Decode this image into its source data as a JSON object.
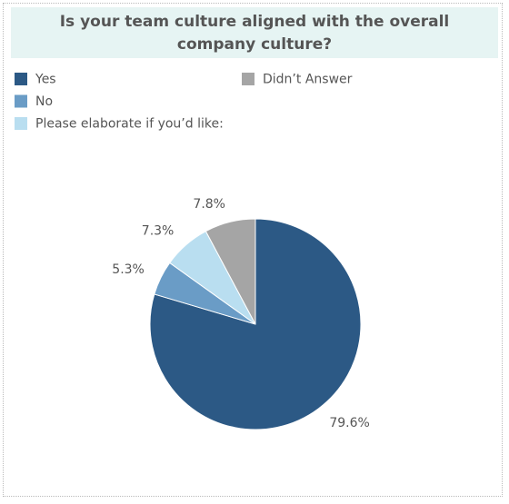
{
  "chart_data": {
    "type": "pie",
    "title": "Is your team culture aligned with the overall company culture?",
    "categories": [
      "Yes",
      "No",
      "Please elaborate if you’d like:",
      "Didn’t Answer"
    ],
    "values": [
      79.6,
      5.3,
      7.3,
      7.8
    ],
    "value_labels": [
      "79.6%",
      "5.3%",
      "7.3%",
      "7.8%"
    ],
    "colors": [
      "#2c5985",
      "#6a9cc6",
      "#b9def0",
      "#a5a5a5"
    ]
  }
}
